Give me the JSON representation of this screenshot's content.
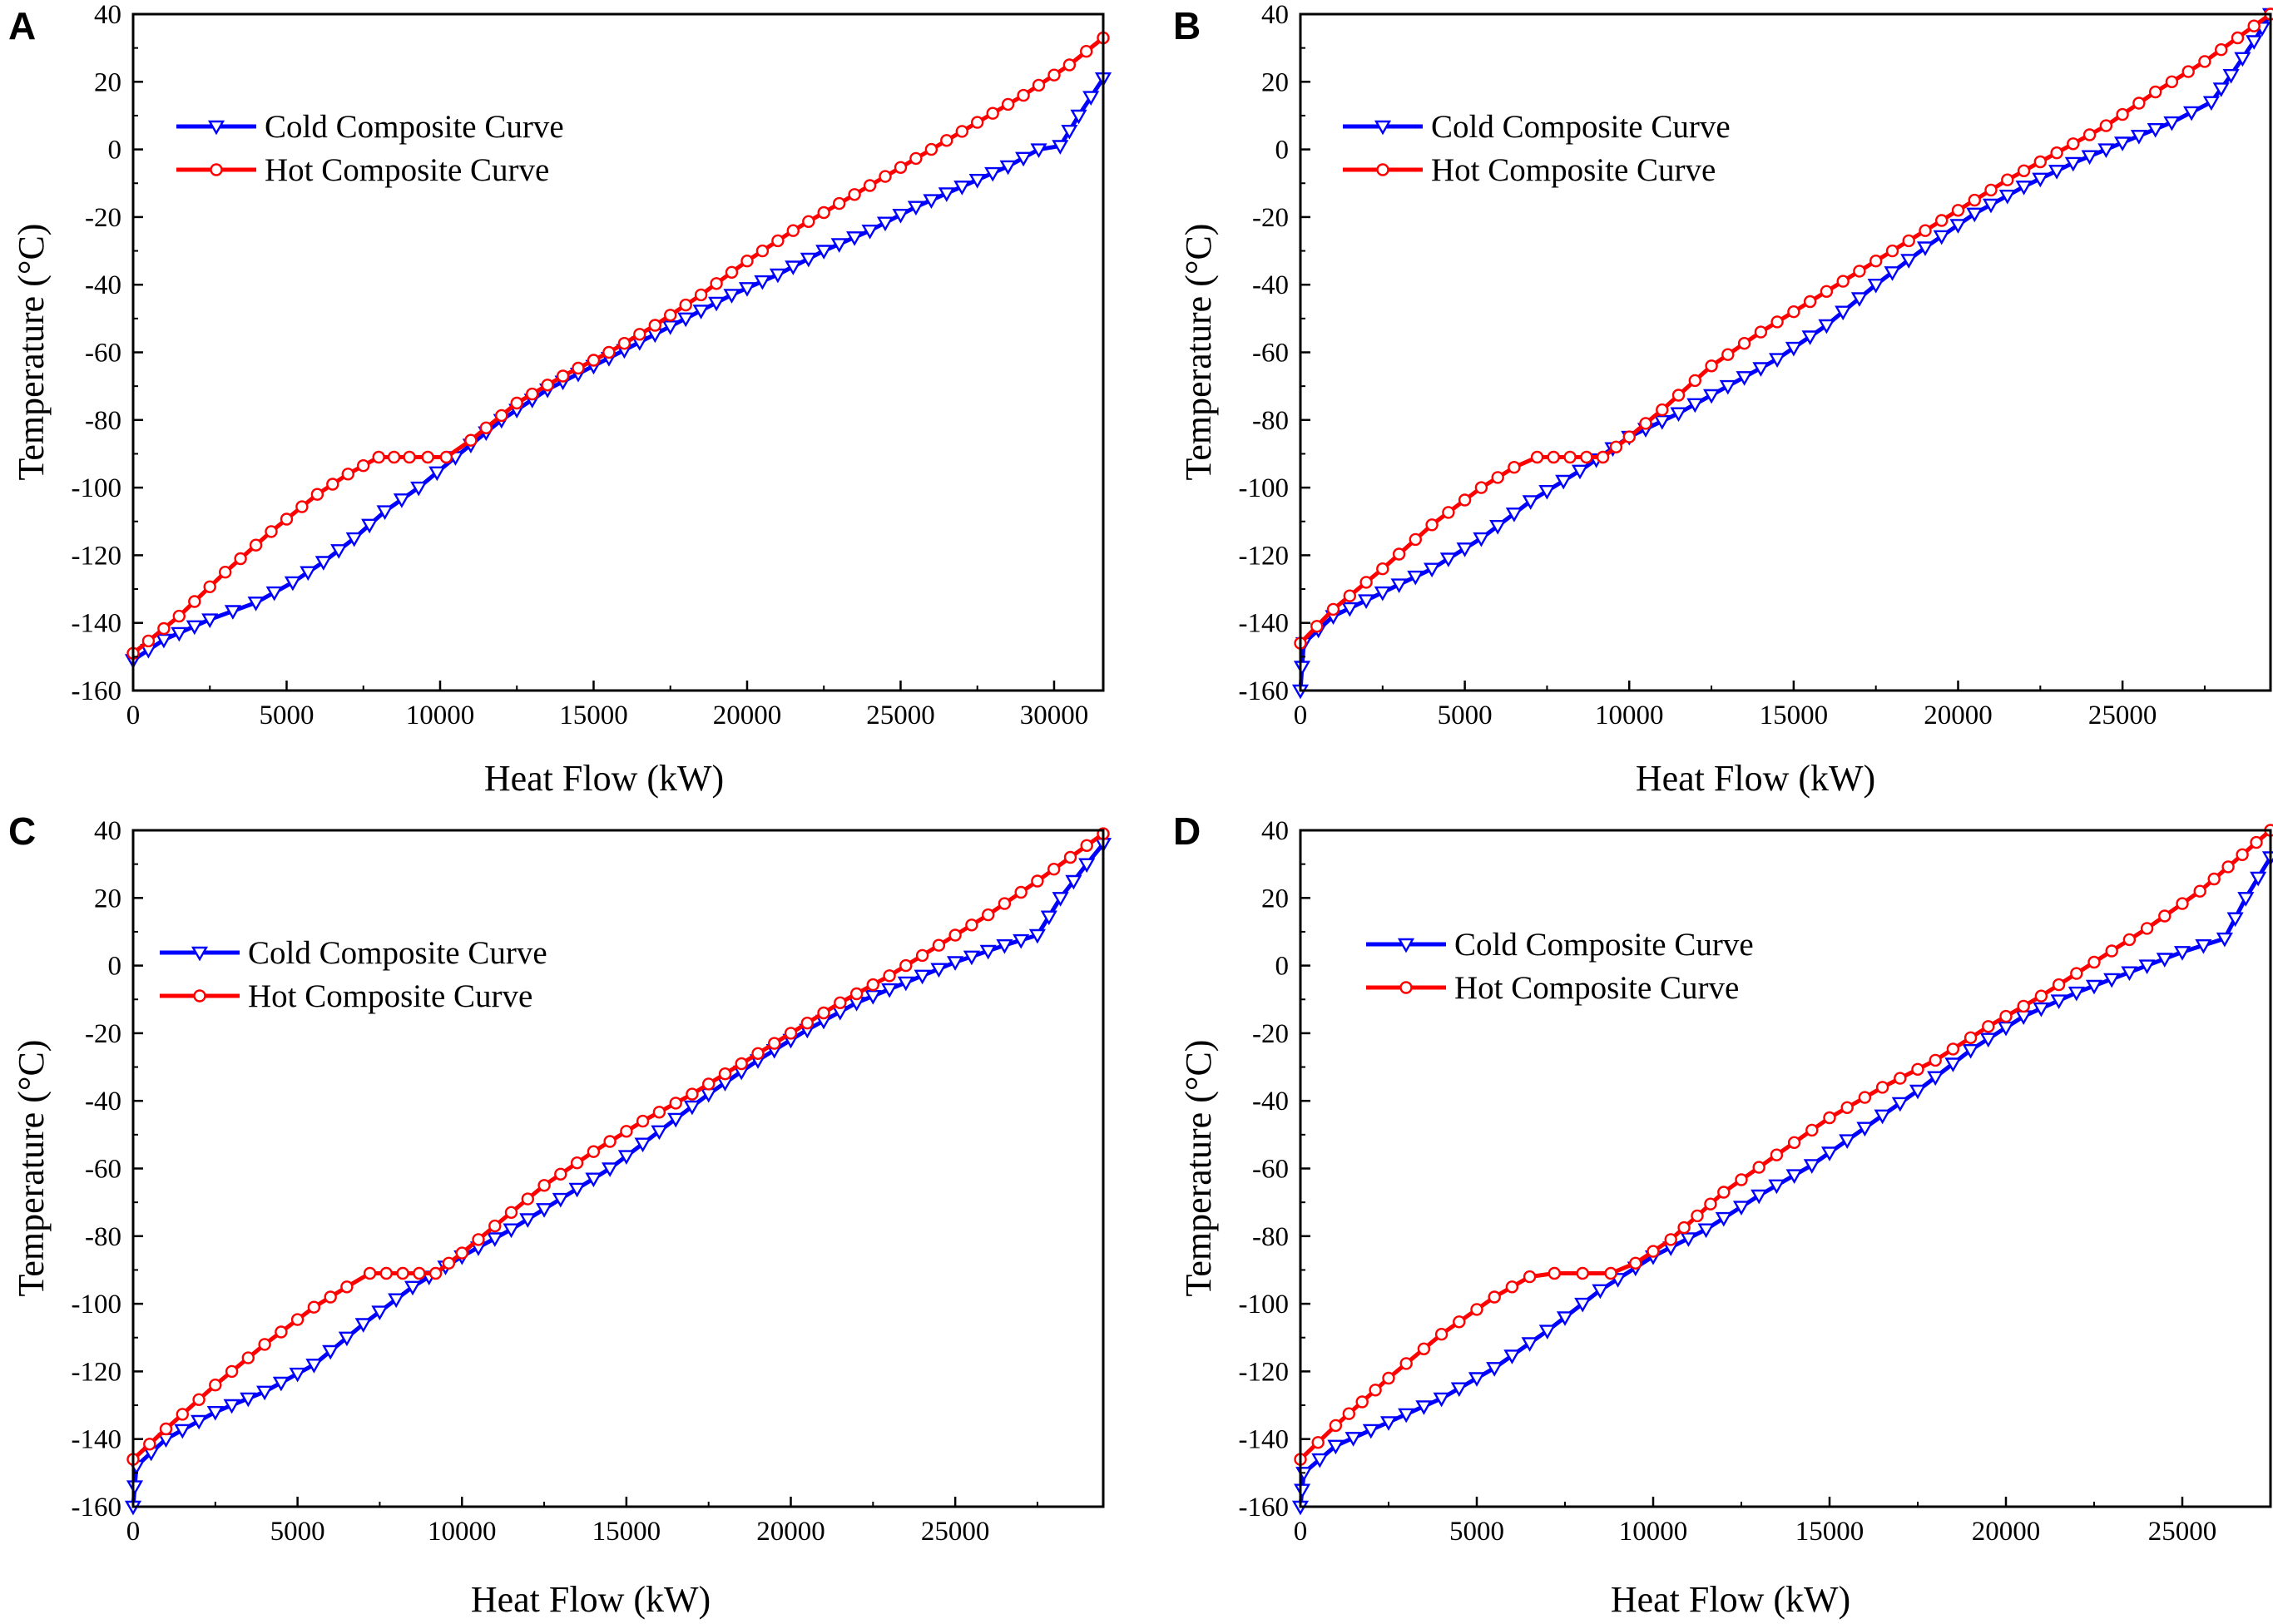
{
  "figure": {
    "panel_count": 4
  },
  "chart_data": [
    {
      "panel": "A",
      "type": "line",
      "xlabel": "Heat Flow (kW)",
      "ylabel": "Temperature (°C)",
      "xlim": [
        0,
        31600
      ],
      "ylim": [
        -160,
        40
      ],
      "xticks": [
        0,
        5000,
        10000,
        15000,
        20000,
        25000,
        30000
      ],
      "yticks": [
        -160,
        -140,
        -120,
        -100,
        -80,
        -60,
        -40,
        -20,
        0,
        20,
        40
      ],
      "legend_position": "upper-left",
      "series": [
        {
          "name": "Cold Composite Curve",
          "color": "#0000ff",
          "marker": "triangle-down",
          "x": [
            0,
            1000,
            2500,
            4000,
            5200,
            6200,
            7200,
            8200,
            9300,
            10500,
            12000,
            13500,
            15000,
            16500,
            18000,
            19500,
            21000,
            22500,
            24000,
            25500,
            27000,
            28500,
            29500,
            30200,
            30800,
            31600
          ],
          "y": [
            -151,
            -145,
            -139,
            -134,
            -128,
            -122,
            -115,
            -107,
            -100,
            -91,
            -80,
            -71,
            -64,
            -57,
            -50,
            -43,
            -37,
            -30,
            -24,
            -17,
            -11,
            -5,
            0,
            1,
            10,
            21
          ]
        },
        {
          "name": "Hot Composite Curve",
          "color": "#ff0000",
          "marker": "circle",
          "x": [
            0,
            1500,
            3000,
            4500,
            6000,
            7000,
            8000,
            9000,
            10200,
            11000,
            12500,
            14000,
            15500,
            17000,
            18500,
            20000,
            21500,
            23000,
            24500,
            26000,
            27500,
            29000,
            30500,
            31600
          ],
          "y": [
            -149,
            -138,
            -125,
            -113,
            -102,
            -96,
            -91,
            -91,
            -91,
            -86,
            -75,
            -67,
            -60,
            -52,
            -43,
            -33,
            -24,
            -16,
            -8,
            0,
            8,
            16,
            25,
            33
          ]
        }
      ]
    },
    {
      "panel": "B",
      "type": "line",
      "xlabel": "Heat Flow (kW)",
      "ylabel": "Temperature (°C)",
      "xlim": [
        0,
        29500
      ],
      "ylim": [
        -160,
        40
      ],
      "xticks": [
        0,
        5000,
        10000,
        15000,
        20000,
        25000
      ],
      "yticks": [
        -160,
        -140,
        -120,
        -100,
        -80,
        -60,
        -40,
        -20,
        0,
        20,
        40
      ],
      "legend_position": "upper-left",
      "series": [
        {
          "name": "Cold Composite Curve",
          "color": "#0000ff",
          "marker": "triangle-down",
          "x": [
            0,
            100,
            1000,
            2500,
            4000,
            5500,
            7000,
            8500,
            10000,
            11500,
            13000,
            14500,
            16000,
            17500,
            19000,
            20500,
            22000,
            23500,
            25000,
            26500,
            27700,
            28300,
            29000,
            29500
          ],
          "y": [
            -160,
            -146,
            -138,
            -131,
            -124,
            -115,
            -104,
            -95,
            -85,
            -78,
            -70,
            -62,
            -52,
            -40,
            -29,
            -19,
            -11,
            -4,
            2,
            8,
            14,
            22,
            32,
            40
          ]
        },
        {
          "name": "Hot Composite Curve",
          "color": "#ff0000",
          "marker": "circle",
          "x": [
            0,
            1000,
            2500,
            4000,
            5500,
            6500,
            7200,
            8200,
            9200,
            10000,
            11000,
            12500,
            14000,
            15500,
            17000,
            18500,
            20000,
            21500,
            23000,
            24500,
            26000,
            27500,
            29500
          ],
          "y": [
            -146,
            -136,
            -124,
            -111,
            -100,
            -94,
            -91,
            -91,
            -91,
            -85,
            -77,
            -64,
            -54,
            -45,
            -36,
            -27,
            -18,
            -9,
            -1,
            7,
            17,
            26,
            40
          ]
        }
      ]
    },
    {
      "panel": "C",
      "type": "line",
      "xlabel": "Heat Flow (kW)",
      "ylabel": "Temperature (°C)",
      "xlim": [
        0,
        29500
      ],
      "ylim": [
        -160,
        40
      ],
      "xticks": [
        0,
        5000,
        10000,
        15000,
        20000,
        25000
      ],
      "yticks": [
        -160,
        -140,
        -120,
        -100,
        -80,
        -60,
        -40,
        -20,
        0,
        20,
        40
      ],
      "legend_position": "upper-left",
      "series": [
        {
          "name": "Cold Composite Curve",
          "color": "#0000ff",
          "marker": "triangle-down",
          "x": [
            0,
            100,
            1000,
            2500,
            4000,
            5500,
            7000,
            8500,
            10000,
            11500,
            13000,
            14500,
            16000,
            17500,
            19000,
            20500,
            22000,
            23500,
            25000,
            26500,
            27500,
            28200,
            29000,
            29500
          ],
          "y": [
            -160,
            -148,
            -140,
            -132,
            -126,
            -118,
            -106,
            -95,
            -86,
            -78,
            -69,
            -60,
            -49,
            -38,
            -28,
            -19,
            -11,
            -5,
            1,
            6,
            9,
            20,
            30,
            36
          ]
        },
        {
          "name": "Hot Composite Curve",
          "color": "#ff0000",
          "marker": "circle",
          "x": [
            0,
            1000,
            2500,
            4000,
            5500,
            6500,
            7200,
            8200,
            9200,
            10000,
            11000,
            12500,
            14000,
            15500,
            17000,
            18500,
            20000,
            21500,
            23000,
            24500,
            26000,
            27500,
            29500
          ],
          "y": [
            -146,
            -137,
            -124,
            -112,
            -101,
            -95,
            -91,
            -91,
            -91,
            -85,
            -77,
            -65,
            -55,
            -46,
            -38,
            -29,
            -20,
            -11,
            -3,
            6,
            15,
            25,
            39
          ]
        }
      ]
    },
    {
      "panel": "D",
      "type": "line",
      "xlabel": "Heat Flow (kW)",
      "ylabel": "Temperature (°C)",
      "xlim": [
        0,
        27500
      ],
      "ylim": [
        -160,
        40
      ],
      "xticks": [
        0,
        5000,
        10000,
        15000,
        20000,
        25000
      ],
      "yticks": [
        -160,
        -140,
        -120,
        -100,
        -80,
        -60,
        -40,
        -20,
        0,
        20,
        40
      ],
      "legend_position": "upper-left",
      "series": [
        {
          "name": "Cold Composite Curve",
          "color": "#0000ff",
          "marker": "triangle-down",
          "x": [
            0,
            100,
            1000,
            2500,
            4000,
            5500,
            7000,
            8500,
            10000,
            11500,
            13000,
            14500,
            16000,
            17500,
            19000,
            20500,
            22000,
            23500,
            25000,
            26200,
            26800,
            27500
          ],
          "y": [
            -160,
            -150,
            -142,
            -135,
            -128,
            -119,
            -108,
            -96,
            -86,
            -78,
            -68,
            -59,
            -48,
            -37,
            -25,
            -15,
            -8,
            -2,
            4,
            8,
            20,
            32
          ]
        },
        {
          "name": "Hot Composite Curve",
          "color": "#ff0000",
          "marker": "circle",
          "x": [
            0,
            1000,
            2500,
            4000,
            5500,
            6500,
            7200,
            8000,
            8800,
            9500,
            10500,
            12000,
            13500,
            15000,
            16500,
            18000,
            19500,
            21000,
            22500,
            24000,
            25500,
            27500
          ],
          "y": [
            -146,
            -136,
            -122,
            -109,
            -98,
            -92,
            -91,
            -91,
            -91,
            -88,
            -81,
            -67,
            -56,
            -45,
            -36,
            -28,
            -18,
            -9,
            1,
            11,
            22,
            40
          ]
        }
      ]
    }
  ]
}
